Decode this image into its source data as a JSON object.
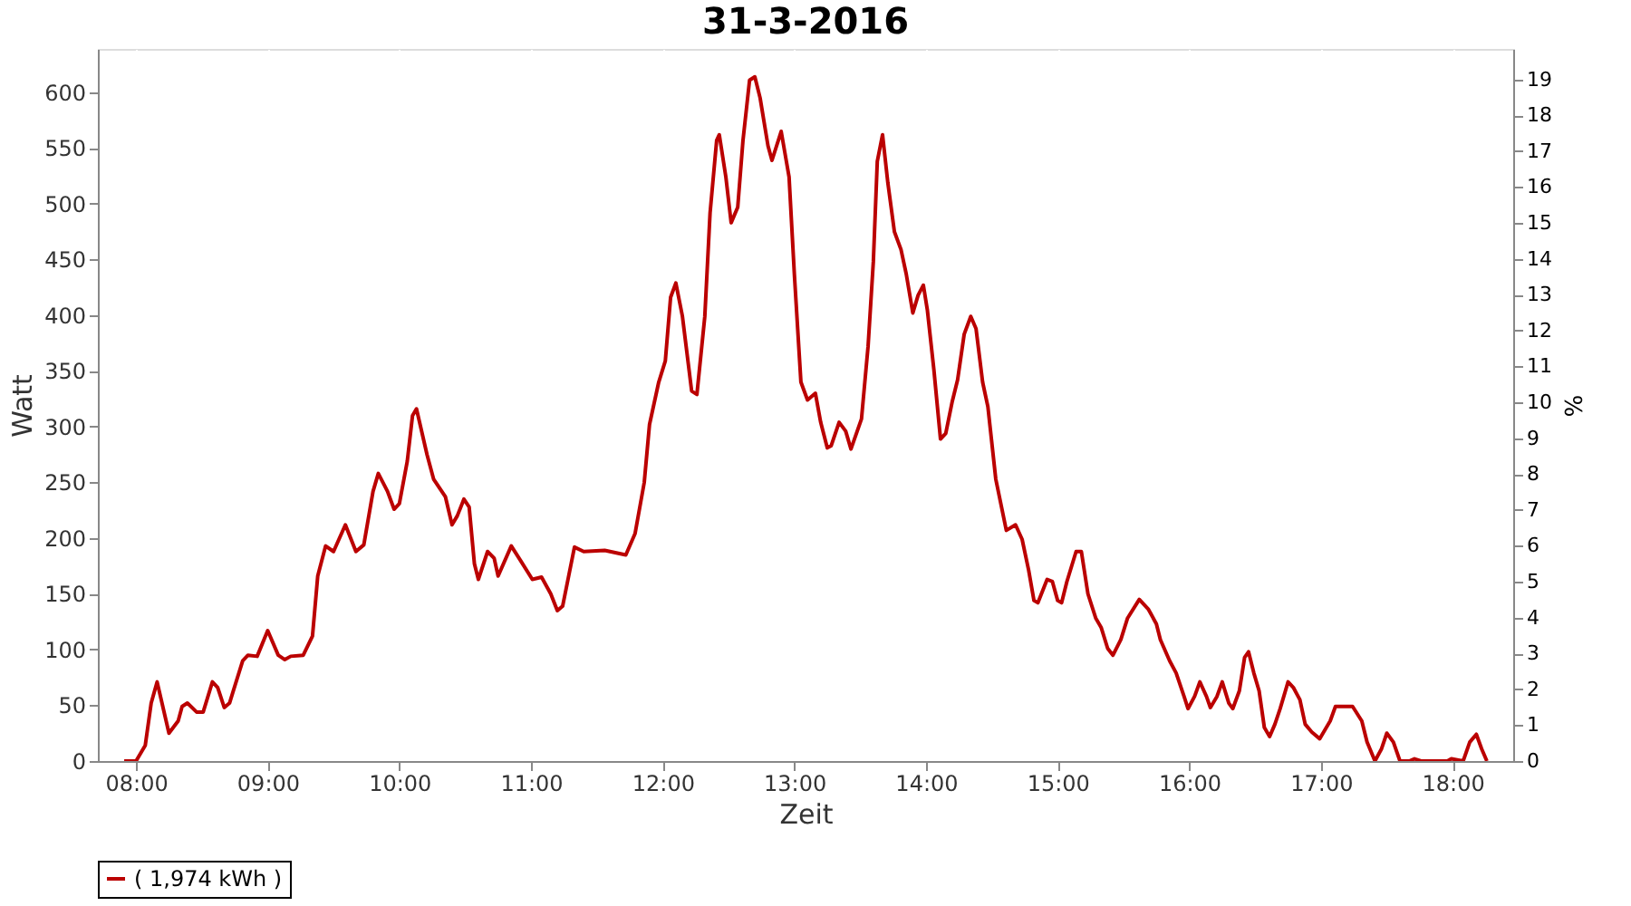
{
  "chart_data": {
    "type": "line",
    "title": "31-3-2016",
    "xlabel": "Zeit",
    "ylabel": "Watt",
    "y2label": "%",
    "xlim": [
      7.71,
      18.46
    ],
    "xticks": [
      {
        "value": 8,
        "label": "08:00"
      },
      {
        "value": 9,
        "label": "09:00"
      },
      {
        "value": 10,
        "label": "10:00"
      },
      {
        "value": 11,
        "label": "11:00"
      },
      {
        "value": 12,
        "label": "12:00"
      },
      {
        "value": 13,
        "label": "13:00"
      },
      {
        "value": 14,
        "label": "14:00"
      },
      {
        "value": 15,
        "label": "15:00"
      },
      {
        "value": 16,
        "label": "16:00"
      },
      {
        "value": 17,
        "label": "17:00"
      },
      {
        "value": 18,
        "label": "18:00"
      }
    ],
    "ylim": [
      0,
      639
    ],
    "yticks": [
      0,
      50,
      100,
      150,
      200,
      250,
      300,
      350,
      400,
      450,
      500,
      550,
      600
    ],
    "y2lim": [
      0,
      19.85
    ],
    "y2ticks": [
      0,
      1,
      2,
      3,
      4,
      5,
      6,
      7,
      8,
      9,
      10,
      11,
      12,
      13,
      14,
      15,
      16,
      17,
      18,
      19
    ],
    "grid": true,
    "legend": "bottom",
    "marker": "none",
    "line_style": "solid",
    "series": [
      {
        "name": "( 1,974 kWh )",
        "color": "#bb0000",
        "x": [
          7.91,
          8.0,
          8.07,
          8.115,
          8.16,
          8.25,
          8.32,
          8.35,
          8.39,
          8.46,
          8.51,
          8.58,
          8.62,
          8.67,
          8.71,
          8.81,
          8.85,
          8.92,
          9.0,
          9.08,
          9.13,
          9.175,
          9.27,
          9.34,
          9.38,
          9.44,
          9.5,
          9.59,
          9.67,
          9.73,
          9.8,
          9.84,
          9.91,
          9.96,
          10.0,
          10.06,
          10.1,
          10.13,
          10.21,
          10.26,
          10.35,
          10.4,
          10.44,
          10.49,
          10.53,
          10.57,
          10.6,
          10.67,
          10.72,
          10.75,
          10.85,
          10.92,
          11.01,
          11.08,
          11.15,
          11.2,
          11.24,
          11.33,
          11.4,
          11.56,
          11.72,
          11.79,
          11.86,
          11.9,
          11.97,
          12.02,
          12.06,
          12.1,
          12.15,
          12.22,
          12.26,
          12.32,
          12.36,
          12.41,
          12.43,
          12.48,
          12.52,
          12.57,
          12.61,
          12.66,
          12.7,
          12.74,
          12.8,
          12.83,
          12.9,
          12.96,
          13.0,
          13.05,
          13.1,
          13.16,
          13.2,
          13.25,
          13.28,
          13.34,
          13.39,
          13.43,
          13.51,
          13.56,
          13.6,
          13.63,
          13.67,
          13.71,
          13.76,
          13.81,
          13.85,
          13.9,
          13.94,
          13.98,
          14.01,
          14.06,
          14.11,
          14.15,
          14.2,
          14.24,
          14.29,
          14.34,
          14.38,
          14.43,
          14.47,
          14.53,
          14.61,
          14.68,
          14.73,
          14.78,
          14.82,
          14.85,
          14.92,
          14.96,
          15.0,
          15.03,
          15.07,
          15.14,
          15.18,
          15.23,
          15.29,
          15.33,
          15.38,
          15.42,
          15.48,
          15.53,
          15.62,
          15.69,
          15.75,
          15.78,
          15.85,
          15.9,
          15.96,
          15.99,
          16.04,
          16.08,
          16.13,
          16.16,
          16.21,
          16.25,
          16.3,
          16.33,
          16.38,
          16.42,
          16.45,
          16.49,
          16.53,
          16.57,
          16.61,
          16.65,
          16.69,
          16.75,
          16.79,
          16.84,
          16.88,
          16.93,
          16.99,
          17.07,
          17.11,
          17.18,
          17.24,
          17.31,
          17.35,
          17.41,
          17.46,
          17.5,
          17.55,
          17.6,
          17.67,
          17.71,
          17.76,
          17.96,
          17.99,
          18.08,
          18.13,
          18.18,
          18.22,
          18.26
        ],
        "values": [
          0,
          0,
          14,
          52,
          71,
          25,
          36,
          49,
          52,
          44,
          44,
          71,
          66,
          48,
          52,
          90,
          95,
          94,
          117,
          95,
          91,
          94,
          95,
          112,
          166,
          193,
          188,
          212,
          188,
          194,
          242,
          258,
          242,
          226,
          231,
          269,
          310,
          316,
          275,
          253,
          237,
          212,
          220,
          235,
          228,
          177,
          163,
          188,
          182,
          166,
          193,
          180,
          163,
          165,
          150,
          135,
          139,
          192,
          188,
          189,
          185,
          204,
          250,
          302,
          340,
          359,
          416,
          429,
          399,
          332,
          329,
          399,
          492,
          557,
          562,
          524,
          483,
          497,
          557,
          611,
          614,
          595,
          552,
          539,
          565,
          524,
          437,
          340,
          324,
          330,
          304,
          281,
          283,
          304,
          296,
          280,
          307,
          372,
          448,
          538,
          562,
          519,
          475,
          459,
          437,
          402,
          418,
          427,
          405,
          351,
          289,
          294,
          323,
          342,
          383,
          399,
          388,
          340,
          318,
          253,
          207,
          212,
          199,
          171,
          144,
          142,
          163,
          161,
          144,
          142,
          161,
          188,
          188,
          150,
          128,
          120,
          101,
          95,
          109,
          128,
          145,
          136,
          123,
          109,
          90,
          79,
          58,
          47,
          58,
          71,
          58,
          48,
          58,
          71,
          52,
          47,
          63,
          93,
          98,
          79,
          63,
          30,
          22,
          33,
          47,
          71,
          66,
          55,
          33,
          26,
          20,
          36,
          49,
          49,
          49,
          36,
          17,
          0,
          11,
          25,
          17,
          0,
          0,
          2,
          0,
          0,
          2,
          0,
          17,
          24,
          11,
          0
        ]
      }
    ]
  }
}
